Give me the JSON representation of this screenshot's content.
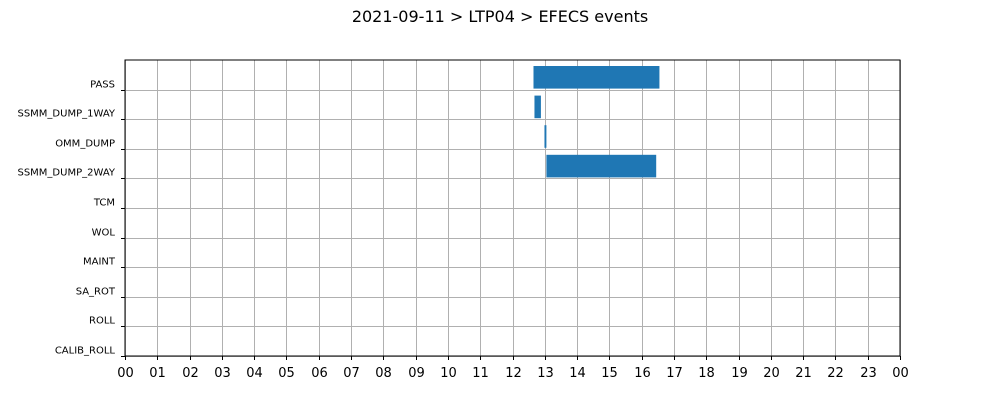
{
  "chart_data": {
    "type": "bar",
    "orientation": "horizontal-timeline",
    "title": "2021-09-11 > LTP04 > EFECS events",
    "xlabel": "",
    "ylabel": "",
    "xlim": [
      0,
      24
    ],
    "x_tick_labels": [
      "00",
      "01",
      "02",
      "03",
      "04",
      "05",
      "06",
      "07",
      "08",
      "09",
      "10",
      "11",
      "12",
      "13",
      "14",
      "15",
      "16",
      "17",
      "18",
      "19",
      "20",
      "21",
      "22",
      "23",
      "00"
    ],
    "categories": [
      "PASS",
      "SSMM_DUMP_1WAY",
      "OMM_DUMP",
      "SSMM_DUMP_2WAY",
      "TCM",
      "WOL",
      "MAINT",
      "SA_ROT",
      "ROLL",
      "CALIB_ROLL"
    ],
    "grid": true,
    "bar_color": "#1f77b4",
    "events": [
      {
        "category": "PASS",
        "start": 12.65,
        "end": 16.55
      },
      {
        "category": "SSMM_DUMP_1WAY",
        "start": 12.68,
        "end": 12.88
      },
      {
        "category": "OMM_DUMP",
        "start": 12.99,
        "end": 13.05
      },
      {
        "category": "SSMM_DUMP_2WAY",
        "start": 13.05,
        "end": 16.45
      }
    ]
  }
}
